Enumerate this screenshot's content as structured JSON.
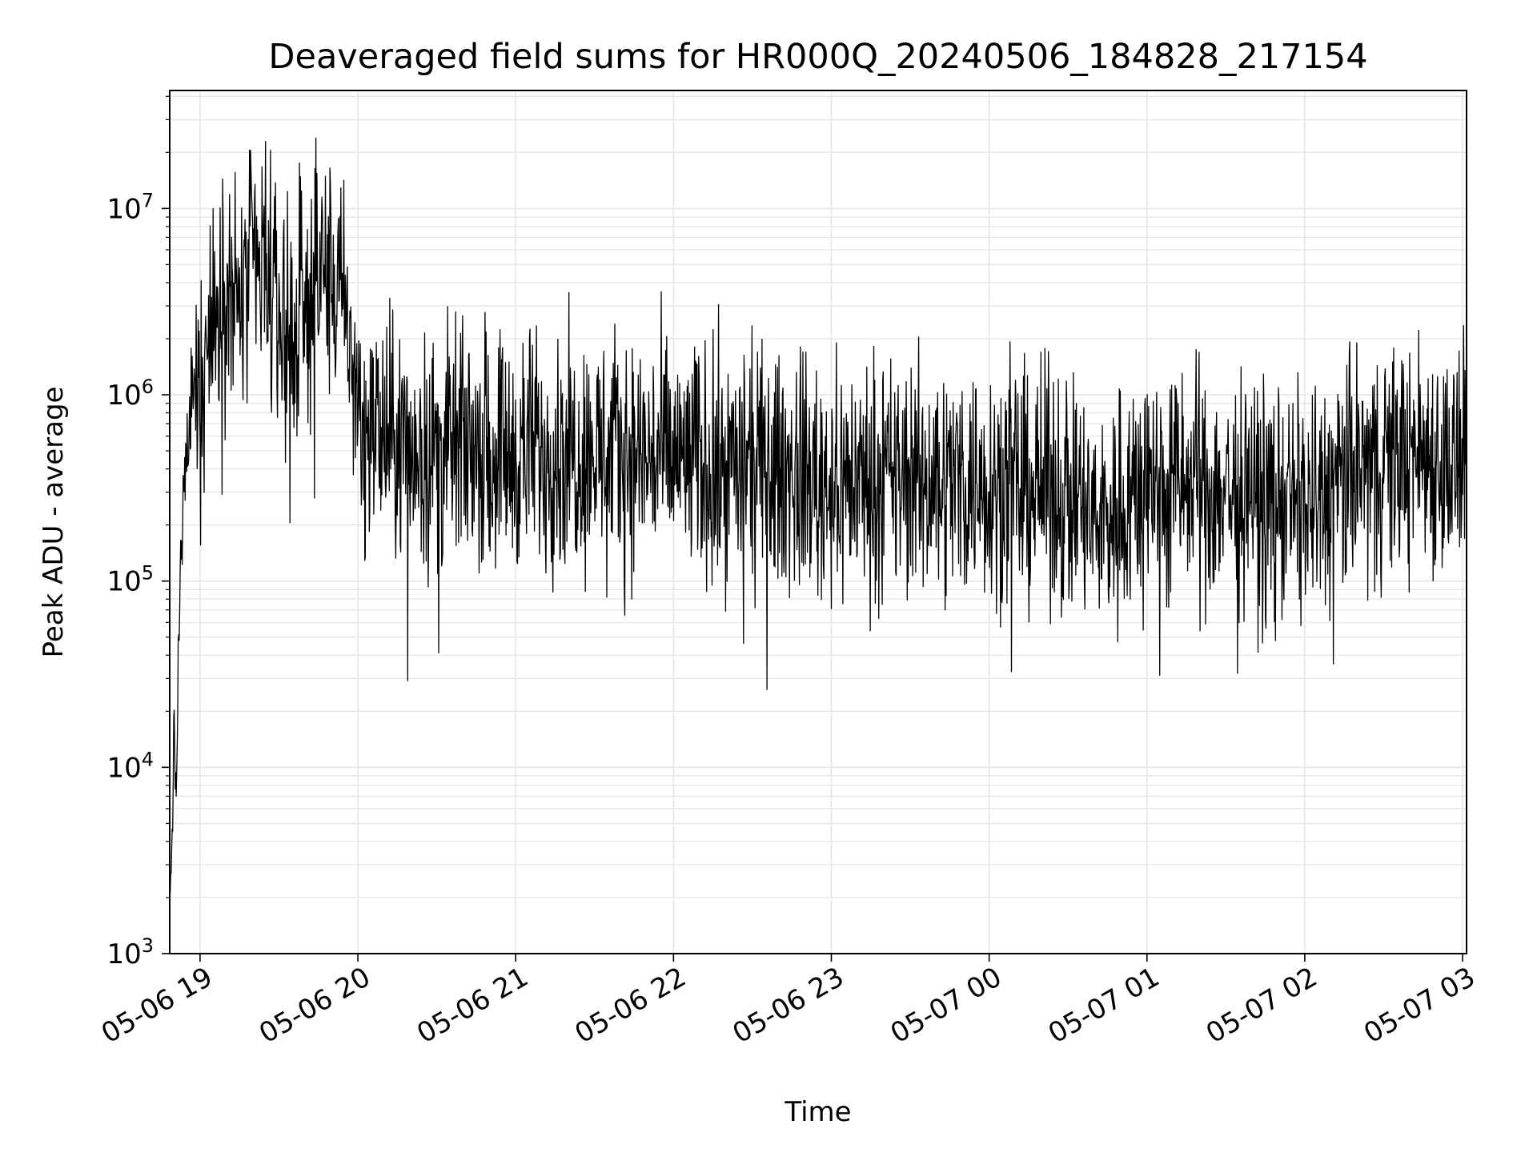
{
  "chart_data": {
    "type": "line",
    "title": "Deaveraged field sums for HR000Q_20240506_184828_217154",
    "xlabel": "Time",
    "ylabel": "Peak ADU - average",
    "yscale": "log",
    "ylim": [
      1000,
      43000000
    ],
    "xlim": [
      "2024-05-06 18:48:28",
      "2024-05-07 03:01:30"
    ],
    "x_ticks": [
      "05-06 19",
      "05-06 20",
      "05-06 21",
      "05-06 22",
      "05-06 23",
      "05-07 00",
      "05-07 01",
      "05-07 02",
      "05-07 03"
    ],
    "y_ticks": [
      {
        "base": "10",
        "exp": "3"
      },
      {
        "base": "10",
        "exp": "4"
      },
      {
        "base": "10",
        "exp": "5"
      },
      {
        "base": "10",
        "exp": "6"
      },
      {
        "base": "10",
        "exp": "7"
      }
    ],
    "grid": true,
    "line_color": "#000000",
    "grid_color": "#e6e6e6",
    "series": [
      {
        "x": [
          "2024-05-06 18:48:28",
          "2024-05-06 18:49:00",
          "2024-05-06 18:50:00",
          "2024-05-06 18:51:00",
          "2024-05-06 18:52:00",
          "2024-05-06 18:53:00",
          "2024-05-06 18:54:00",
          "2024-05-06 18:55:00",
          "2024-05-06 18:56:00",
          "2024-05-06 18:58:00",
          "2024-05-06 19:00:00",
          "2024-05-06 19:03:00",
          "2024-05-06 19:06:00",
          "2024-05-06 19:10:00",
          "2024-05-06 19:15:00",
          "2024-05-06 19:20:00",
          "2024-05-06 19:25:00",
          "2024-05-06 19:30:00",
          "2024-05-06 19:35:00",
          "2024-05-06 19:40:00",
          "2024-05-06 19:45:00",
          "2024-05-06 19:50:00",
          "2024-05-06 19:55:00",
          "2024-05-06 20:00:00",
          "2024-05-06 20:10:00",
          "2024-05-06 20:20:00",
          "2024-05-06 20:30:00",
          "2024-05-06 20:45:00",
          "2024-05-06 21:00:00",
          "2024-05-06 21:30:00",
          "2024-05-06 22:00:00",
          "2024-05-06 22:30:00",
          "2024-05-06 23:00:00",
          "2024-05-06 23:30:00",
          "2024-05-07 00:00:00",
          "2024-05-07 00:30:00",
          "2024-05-07 00:40:00",
          "2024-05-07 01:00:00",
          "2024-05-07 01:30:00",
          "2024-05-07 02:00:00",
          "2024-05-07 02:30:00",
          "2024-05-07 02:45:00",
          "2024-05-07 03:00:00",
          "2024-05-07 03:01:30"
        ],
        "y": [
          1600,
          3000,
          12000,
          8000,
          60000,
          150000,
          300000,
          500000,
          600000,
          800000,
          1000000,
          2000000,
          2500000,
          4000000,
          3000000,
          5000000,
          4000000,
          2500000,
          2000000,
          3000000,
          5000000,
          4000000,
          3000000,
          800000,
          600000,
          500000,
          500000,
          550000,
          500000,
          500000,
          450000,
          400000,
          350000,
          350000,
          350000,
          300000,
          200000,
          350000,
          300000,
          250000,
          450000,
          500000,
          400000,
          1000000
        ]
      }
    ]
  }
}
